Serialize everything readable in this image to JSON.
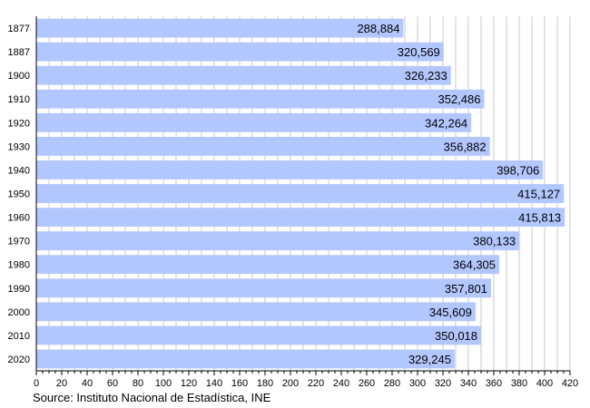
{
  "chart_data": {
    "type": "bar",
    "orientation": "horizontal",
    "categories": [
      "1877",
      "1887",
      "1900",
      "1910",
      "1920",
      "1930",
      "1940",
      "1950",
      "1960",
      "1970",
      "1980",
      "1990",
      "2000",
      "2010",
      "2020"
    ],
    "values": [
      288884,
      320569,
      326233,
      352486,
      342264,
      356882,
      398706,
      415127,
      415813,
      380133,
      364305,
      357801,
      345609,
      350018,
      329245
    ],
    "value_labels": [
      "288,884",
      "320,569",
      "326,233",
      "352,486",
      "342,264",
      "356,882",
      "398,706",
      "415,127",
      "415,813",
      "380,133",
      "364,305",
      "357,801",
      "345,609",
      "350,018",
      "329,245"
    ],
    "xlim": [
      0,
      420
    ],
    "x_unit_divisor": 1000,
    "xticks": [
      0,
      20,
      40,
      60,
      80,
      100,
      120,
      140,
      160,
      180,
      200,
      220,
      240,
      260,
      280,
      300,
      320,
      340,
      360,
      380,
      400,
      420
    ],
    "grid": true,
    "bar_color": "#b3c7ff",
    "title": "",
    "xlabel": "",
    "ylabel": ""
  },
  "source": "Source: Instituto Nacional de Estadística, INE"
}
